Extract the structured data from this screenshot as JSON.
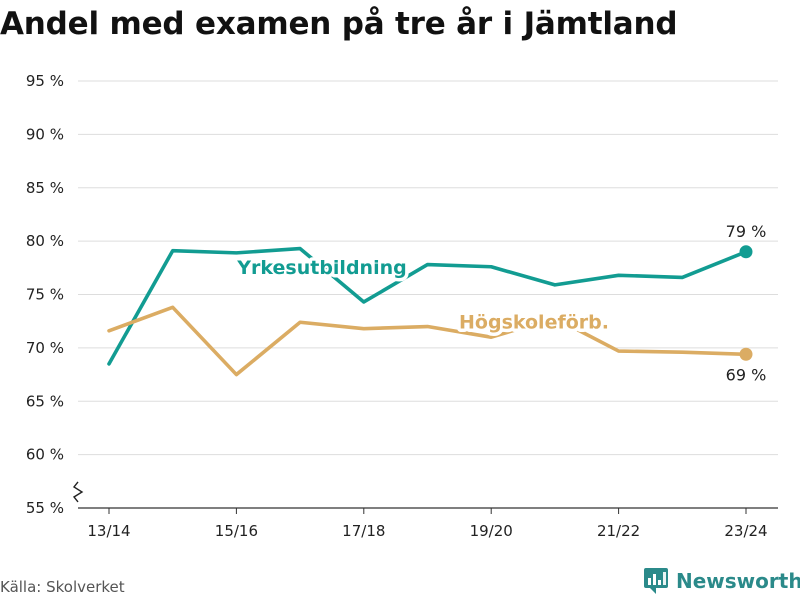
{
  "title": "Andel med examen på tre år i Jämtland",
  "source": "Källa: Skolverket",
  "brand": {
    "name": "Newsworthy",
    "icon": "bar-chart-logo-icon"
  },
  "chart_data": {
    "type": "line",
    "title": "Andel med examen på tre år i Jämtland",
    "x": [
      "13/14",
      "14/15",
      "15/16",
      "16/17",
      "17/18",
      "18/19",
      "19/20",
      "20/21",
      "21/22",
      "22/23",
      "23/24"
    ],
    "x_tick_labels": [
      "13/14",
      "15/16",
      "17/18",
      "19/20",
      "21/22",
      "23/24"
    ],
    "y_ticks": [
      55,
      60,
      65,
      70,
      75,
      80,
      85,
      90,
      95
    ],
    "y_tick_labels": [
      "55 %",
      "60 %",
      "65 %",
      "70 %",
      "75 %",
      "80 %",
      "85 %",
      "90 %",
      "95 %"
    ],
    "ylim": [
      55,
      95
    ],
    "y_axis_break": true,
    "grid": true,
    "series": [
      {
        "name": "Yrkesutbildning",
        "color": "#129c92",
        "values": [
          68.5,
          79.1,
          78.9,
          79.3,
          74.3,
          77.8,
          77.6,
          75.9,
          76.8,
          76.6,
          79.0
        ],
        "end_label": "79 %"
      },
      {
        "name": "Högskoleförb.",
        "color": "#dbac63",
        "values": [
          71.6,
          73.8,
          67.5,
          72.4,
          71.8,
          72.0,
          71.0,
          72.8,
          69.7,
          69.6,
          69.4
        ],
        "end_label": "69 %"
      }
    ]
  }
}
